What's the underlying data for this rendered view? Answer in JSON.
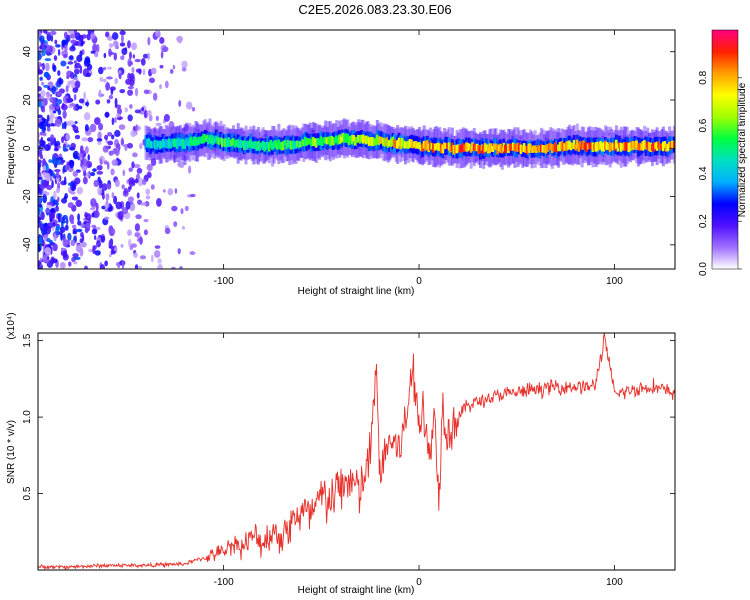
{
  "page": {
    "title": "C2E5.2026.083.23.30.E06"
  },
  "chart_data": [
    {
      "type": "heatmap",
      "title": "C2E5.2026.083.23.30.E06",
      "xlabel": "Height of straight line (km)",
      "ylabel": "Frequency (Hz)",
      "xlim": [
        -195,
        131
      ],
      "ylim": [
        -50,
        49
      ],
      "x_ticks": [
        -100,
        0,
        100
      ],
      "x_tick_labels": [
        "-100",
        "0",
        "100"
      ],
      "y_ticks": [
        -40,
        -20,
        0,
        20,
        40
      ],
      "y_tick_labels": [
        "-40",
        "-20",
        "0",
        "20",
        "40"
      ],
      "ridge": {
        "description": "narrow high-amplitude band near 0 Hz",
        "x": [
          -140,
          -120,
          -110,
          -100,
          -80,
          -60,
          -40,
          -20,
          0,
          20,
          40,
          60,
          80,
          100,
          131
        ],
        "freq": [
          2,
          2,
          4,
          3,
          1,
          2,
          4,
          3,
          1,
          0,
          0,
          0,
          1,
          1,
          1
        ],
        "amplitude": [
          0.45,
          0.5,
          0.55,
          0.6,
          0.55,
          0.6,
          0.7,
          0.8,
          0.85,
          0.9,
          0.9,
          0.9,
          0.9,
          0.9,
          0.9
        ]
      },
      "noise_region_x": [
        -195,
        -115
      ],
      "colorbar": {
        "label": "Normalized spectral amplitude",
        "range": [
          0.0,
          1.0
        ],
        "ticks": [
          0.0,
          0.2,
          0.4,
          0.6,
          0.8
        ],
        "tick_labels": [
          "0.0",
          "0.2",
          "0.4",
          "0.6",
          "0.8"
        ],
        "colors": [
          "#ffffff",
          "#a070ff",
          "#5010ff",
          "#0000ff",
          "#00b0ff",
          "#00e0c0",
          "#00ff40",
          "#a0ff00",
          "#ffff00",
          "#ffa000",
          "#ff2000",
          "#ff0080"
        ]
      }
    },
    {
      "type": "line",
      "xlabel": "Height of straight line (km)",
      "ylabel": "SNR (10 * v/v)",
      "y_multiplier_label": "(x10⁴)",
      "xlim": [
        -195,
        131
      ],
      "ylim": [
        0,
        1.55
      ],
      "x_ticks": [
        -100,
        0,
        100
      ],
      "x_tick_labels": [
        "-100",
        "0",
        "100"
      ],
      "y_ticks": [
        0.5,
        1.0,
        1.5
      ],
      "y_tick_labels": [
        "0.5",
        "1.0",
        "1.5"
      ],
      "color": "#e8302a",
      "series": [
        {
          "name": "SNR",
          "x": [
            -195,
            -180,
            -160,
            -140,
            -120,
            -110,
            -100,
            -95,
            -90,
            -85,
            -80,
            -75,
            -70,
            -65,
            -60,
            -55,
            -50,
            -45,
            -40,
            -35,
            -30,
            -25,
            -22,
            -20,
            -15,
            -10,
            -6,
            -4,
            0,
            2,
            5,
            8,
            10,
            12,
            15,
            20,
            25,
            30,
            40,
            50,
            60,
            70,
            80,
            90,
            95,
            100,
            110,
            120,
            131
          ],
          "values": [
            0.02,
            0.02,
            0.03,
            0.03,
            0.04,
            0.08,
            0.12,
            0.18,
            0.15,
            0.22,
            0.18,
            0.25,
            0.22,
            0.32,
            0.38,
            0.35,
            0.48,
            0.45,
            0.55,
            0.6,
            0.5,
            0.75,
            1.3,
            0.65,
            0.85,
            0.8,
            1.0,
            1.35,
            0.95,
            1.12,
            0.7,
            1.05,
            0.45,
            1.1,
            0.9,
            1.0,
            1.08,
            1.1,
            1.14,
            1.16,
            1.18,
            1.2,
            1.2,
            1.2,
            1.52,
            1.15,
            1.18,
            1.2,
            1.15
          ]
        }
      ]
    }
  ]
}
